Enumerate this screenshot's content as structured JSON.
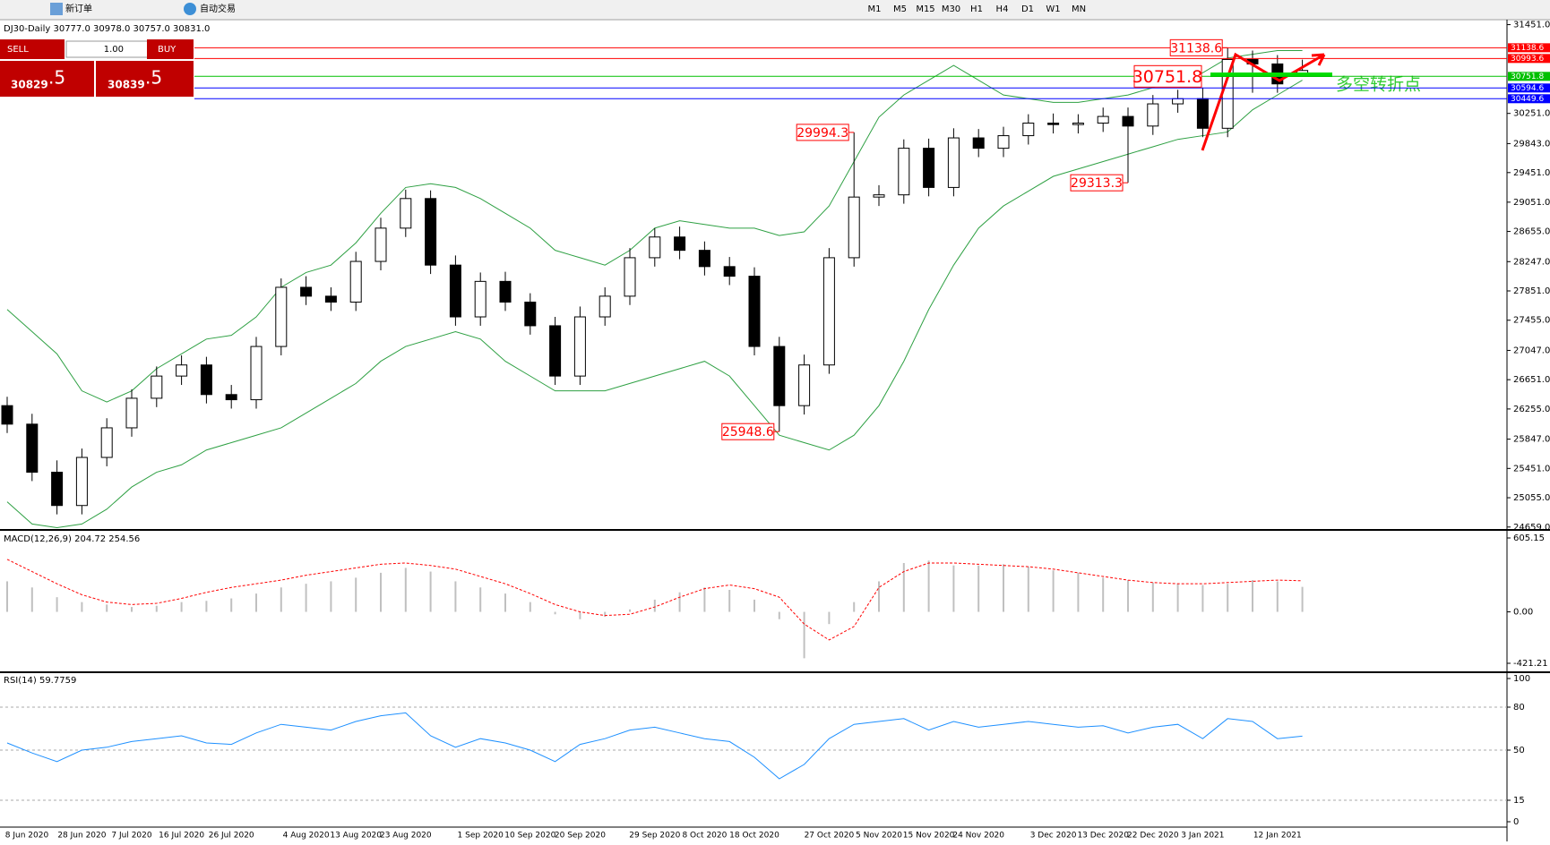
{
  "toolbar": {
    "new_order": "新订单",
    "auto_trading": "自动交易",
    "timeframes": [
      "M1",
      "M5",
      "M15",
      "M30",
      "H1",
      "H4",
      "D1",
      "W1",
      "MN"
    ]
  },
  "trade_panel": {
    "sell": "SELL",
    "buy": "BUY",
    "lot": "1.00",
    "bid_main": "30829",
    "bid_frac": ".5",
    "ask_main": "30839",
    "ask_frac": ".5"
  },
  "symbol_info": "DJ30-Daily  30777.0 30978.0 30757.0 30831.0",
  "annotation_text": "多空转折点",
  "chart_data": {
    "type": "candlestick",
    "categories": [
      "8 Jun 2020",
      null,
      null,
      "28 Jun 2020",
      null,
      "7 Jul 2020",
      null,
      "16 Jul 2020",
      null,
      "26 Jul 2020",
      null,
      null,
      "4 Aug 2020",
      null,
      "13 Aug 2020",
      null,
      "23 Aug 2020",
      null,
      null,
      "1 Sep 2020",
      null,
      "10 Sep 2020",
      null,
      "20 Sep 2020",
      null,
      null,
      "29 Sep 2020",
      null,
      "8 Oct 2020",
      null,
      "18 Oct 2020",
      null,
      null,
      "27 Oct 2020",
      null,
      "5 Nov 2020",
      null,
      "15 Nov 2020",
      null,
      "24 Nov 2020",
      null,
      null,
      "3 Dec 2020",
      null,
      "13 Dec 2020",
      null,
      "22 Dec 2020",
      null,
      "3 Jan 2021",
      null,
      null,
      "12 Jan 2021",
      null
    ],
    "open": [
      26300,
      26050,
      25400,
      24950,
      25600,
      26000,
      26400,
      26700,
      26850,
      26450,
      26380,
      27100,
      27900,
      27780,
      27700,
      28250,
      28700,
      29100,
      28200,
      27500,
      27980,
      27700,
      27380,
      26700,
      27500,
      27780,
      28300,
      28580,
      28400,
      28180,
      28050,
      27100,
      26300,
      26850,
      28300,
      29120,
      29150,
      29780,
      29250,
      29920,
      29780,
      29950,
      30120,
      30100,
      30120,
      30210,
      30080,
      30380,
      30450,
      30050,
      30980,
      30920,
      30777
    ],
    "high": [
      26420,
      26190,
      25560,
      25720,
      26130,
      26520,
      26830,
      26980,
      26960,
      26580,
      27230,
      28020,
      28050,
      27900,
      28380,
      28840,
      29220,
      29210,
      28330,
      28100,
      28110,
      27820,
      27500,
      27640,
      27900,
      28430,
      28700,
      28720,
      28520,
      28310,
      28170,
      27230,
      26990,
      28430,
      29994.3,
      29280,
      29900,
      29910,
      30050,
      30040,
      30070,
      30240,
      30250,
      30240,
      30330,
      30330,
      30500,
      30570,
      30600,
      31138.6,
      31100,
      31040,
      30978
    ],
    "low": [
      25930,
      25280,
      24830,
      24830,
      25480,
      25880,
      26280,
      26580,
      26330,
      26260,
      26260,
      26980,
      27660,
      27580,
      27580,
      28130,
      28580,
      28080,
      27380,
      27380,
      27580,
      27260,
      26580,
      26580,
      27380,
      27660,
      28180,
      28280,
      28060,
      27930,
      26980,
      25948.6,
      26180,
      26730,
      28180,
      29000,
      29030,
      29130,
      29130,
      29660,
      29660,
      29830,
      29980,
      29980,
      30000,
      29313.3,
      29960,
      30260,
      29930,
      29930,
      30530,
      30530,
      30757
    ],
    "close": [
      26050,
      25400,
      24950,
      25600,
      26000,
      26400,
      26700,
      26850,
      26450,
      26380,
      27100,
      27900,
      27780,
      27700,
      28250,
      28700,
      29100,
      28200,
      27500,
      27980,
      27700,
      27380,
      26700,
      27500,
      27780,
      28300,
      28580,
      28400,
      28180,
      28050,
      27100,
      26300,
      26850,
      28300,
      29120,
      29150,
      29780,
      29250,
      29920,
      29780,
      29950,
      30120,
      30100,
      30120,
      30210,
      30080,
      30380,
      30450,
      30050,
      30980,
      30920,
      30650,
      30831
    ],
    "bollinger": {
      "color": "#2ea043",
      "upper": [
        27600,
        27300,
        27000,
        26500,
        26350,
        26500,
        26800,
        27000,
        27200,
        27250,
        27500,
        27900,
        28100,
        28200,
        28500,
        28900,
        29250,
        29300,
        29250,
        29100,
        28900,
        28700,
        28400,
        28300,
        28200,
        28400,
        28700,
        28800,
        28750,
        28700,
        28700,
        28600,
        28650,
        29000,
        29600,
        30200,
        30500,
        30700,
        30900,
        30700,
        30500,
        30450,
        30400,
        30400,
        30450,
        30500,
        30600,
        30700,
        30800,
        31000,
        31050,
        31100,
        31100
      ],
      "lower": [
        25000,
        24700,
        24650,
        24700,
        24900,
        25200,
        25400,
        25500,
        25700,
        25800,
        25900,
        26000,
        26200,
        26400,
        26600,
        26900,
        27100,
        27200,
        27300,
        27200,
        26900,
        26700,
        26500,
        26500,
        26500,
        26600,
        26700,
        26800,
        26900,
        26700,
        26300,
        25900,
        25800,
        25700,
        25900,
        26300,
        26900,
        27600,
        28200,
        28700,
        29000,
        29200,
        29400,
        29500,
        29600,
        29700,
        29800,
        29900,
        29950,
        30000,
        30300,
        30500,
        30700
      ]
    },
    "ylim": [
      24632,
      31518
    ],
    "yticks": [
      {
        "value": 31451,
        "label": "31451.0"
      },
      {
        "value": 30251,
        "label": "30251.0"
      },
      {
        "value": 29843,
        "label": "29843.0"
      },
      {
        "value": 29451,
        "label": "29451.0"
      },
      {
        "value": 29051,
        "label": "29051.0"
      },
      {
        "value": 28655,
        "label": "28655.0"
      },
      {
        "value": 28247,
        "label": "28247.0"
      },
      {
        "value": 27851,
        "label": "27851.0"
      },
      {
        "value": 27455,
        "label": "27455.0"
      },
      {
        "value": 27047,
        "label": "27047.0"
      },
      {
        "value": 26651,
        "label": "26651.0"
      },
      {
        "value": 26255,
        "label": "26255.0"
      },
      {
        "value": 25847,
        "label": "25847.0"
      },
      {
        "value": 25451,
        "label": "25451.0"
      },
      {
        "value": 25055,
        "label": "25055.0"
      },
      {
        "value": 24659,
        "label": "24659.0"
      }
    ],
    "levels": [
      {
        "value": 31138.6,
        "color": "#ff0000"
      },
      {
        "value": 30993.6,
        "color": "#ff0000"
      },
      {
        "value": 30751.8,
        "color": "#00c000"
      },
      {
        "value": 30594.6,
        "color": "#0000ff"
      },
      {
        "value": 30449.6,
        "color": "#0000ff"
      }
    ],
    "macd": {
      "title": "MACD(12,26,9) 204.72 254.56",
      "hist_color": "#c0c0c0",
      "signal_color": "#ff0000",
      "hist": [
        250,
        200,
        120,
        80,
        60,
        40,
        50,
        80,
        90,
        110,
        150,
        200,
        230,
        250,
        280,
        320,
        360,
        330,
        250,
        200,
        150,
        80,
        -20,
        -60,
        -40,
        20,
        100,
        160,
        200,
        180,
        100,
        -60,
        -380,
        -100,
        80,
        250,
        400,
        420,
        380,
        380,
        390,
        370,
        340,
        320,
        280,
        260,
        240,
        230,
        220,
        230,
        260,
        250,
        204.72
      ],
      "signal": [
        430,
        330,
        230,
        140,
        80,
        60,
        70,
        110,
        160,
        200,
        230,
        260,
        300,
        330,
        360,
        390,
        400,
        380,
        350,
        290,
        230,
        150,
        60,
        0,
        -30,
        -20,
        40,
        120,
        190,
        220,
        190,
        120,
        -100,
        -230,
        -120,
        200,
        330,
        400,
        400,
        390,
        380,
        370,
        350,
        320,
        290,
        260,
        240,
        230,
        230,
        240,
        250,
        260,
        254.56
      ],
      "ylim": [
        -421.21,
        605.15
      ],
      "yticks": [
        605.15,
        {
          "value": 0,
          "label": "0.00"
        },
        -421.21
      ]
    },
    "rsi": {
      "title": "RSI(14) 59.7759",
      "color": "#1e90ff",
      "values": [
        55,
        48,
        42,
        50,
        52,
        56,
        58,
        60,
        55,
        54,
        62,
        68,
        66,
        64,
        70,
        74,
        76,
        60,
        52,
        58,
        55,
        50,
        42,
        54,
        58,
        64,
        66,
        62,
        58,
        56,
        45,
        30,
        40,
        58,
        68,
        70,
        72,
        64,
        70,
        66,
        68,
        70,
        68,
        66,
        67,
        62,
        66,
        68,
        58,
        72,
        70,
        58,
        59.7759
      ],
      "ylim": [
        0,
        100
      ],
      "yticks": [
        100,
        80,
        50,
        15,
        0
      ]
    }
  }
}
